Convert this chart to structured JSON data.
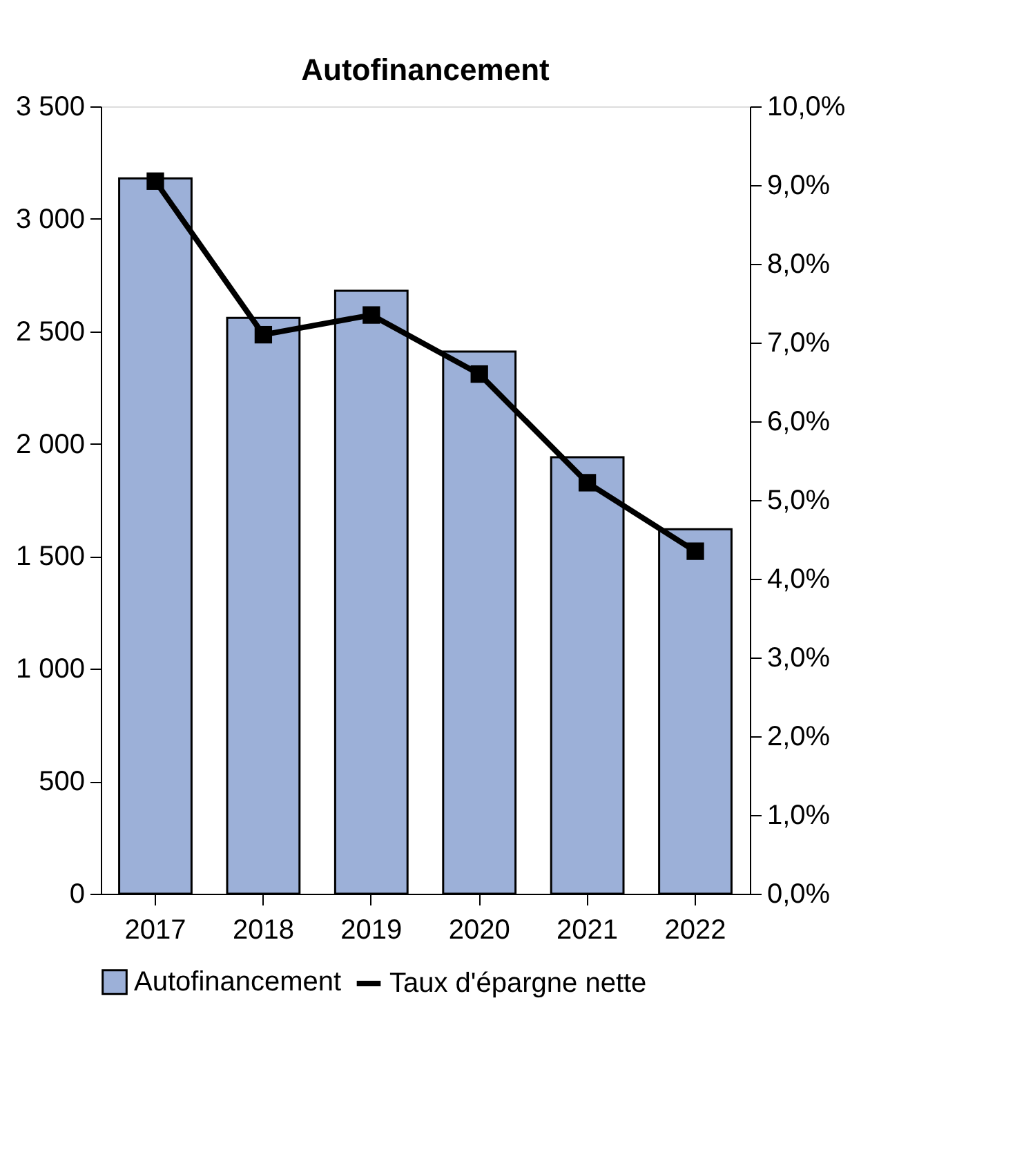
{
  "chart_data": {
    "type": "bar",
    "title": "Autofinancement",
    "categories": [
      "2017",
      "2018",
      "2019",
      "2020",
      "2021",
      "2022"
    ],
    "series": [
      {
        "name": "Autofinancement",
        "color": "#9cb0d8",
        "values": [
          3180,
          2560,
          2680,
          2410,
          1940,
          1620
        ]
      },
      {
        "name": "Taux d'épargne nette",
        "type": "line",
        "axis": "y2",
        "color": "#000000",
        "marker": "square",
        "values": [
          9.05,
          7.1,
          7.35,
          6.6,
          5.22,
          4.35
        ]
      }
    ],
    "ylim": [
      0,
      3500
    ],
    "yticks": [
      0,
      500,
      {
        "value": 1000,
        "label": "1 000"
      },
      {
        "value": 1500,
        "label": "1 500"
      },
      {
        "value": 2000,
        "label": "2 000"
      },
      {
        "value": 2500,
        "label": "2 500"
      },
      {
        "value": 3000,
        "label": "3 000"
      },
      {
        "value": 3500,
        "label": "3 500"
      }
    ],
    "y2lim": [
      0,
      10
    ],
    "y2ticks": [
      {
        "value": 0,
        "label": "0,0%"
      },
      {
        "value": 1,
        "label": "1,0%"
      },
      {
        "value": 2,
        "label": "2,0%"
      },
      {
        "value": 3,
        "label": "3,0%"
      },
      {
        "value": 4,
        "label": "4,0%"
      },
      {
        "value": 5,
        "label": "5,0%"
      },
      {
        "value": 6,
        "label": "6,0%"
      },
      {
        "value": 7,
        "label": "7,0%"
      },
      {
        "value": 8,
        "label": "8,0%"
      },
      {
        "value": 9,
        "label": "9,0%"
      },
      {
        "value": 10,
        "label": "10,0%"
      }
    ],
    "grid": false,
    "legend": "bottom"
  }
}
